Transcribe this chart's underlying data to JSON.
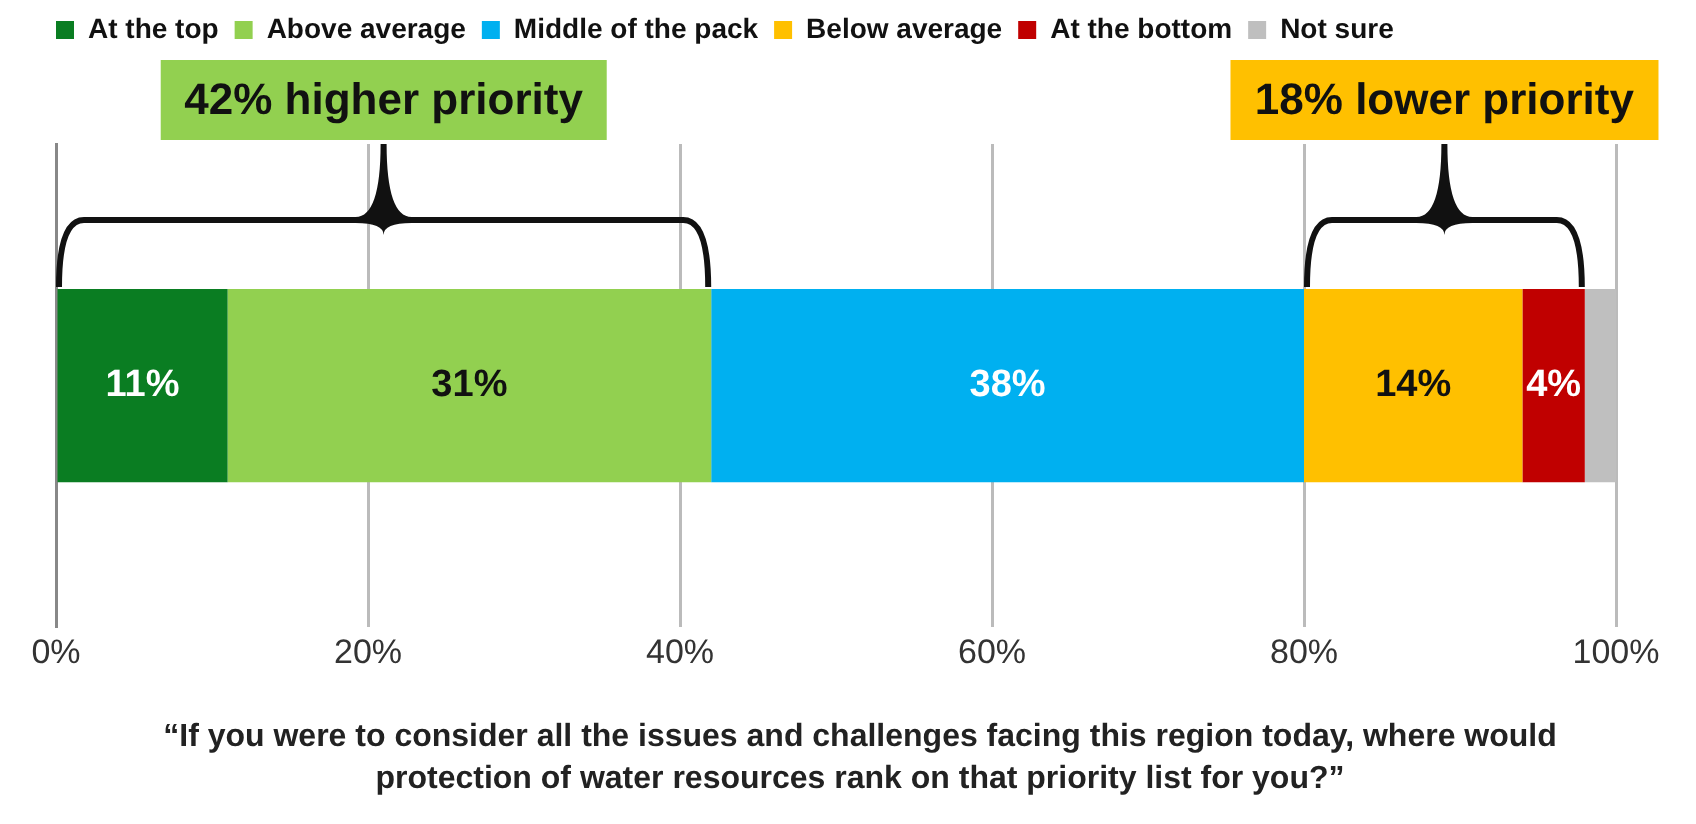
{
  "chart_data": {
    "type": "bar",
    "orientation": "horizontal",
    "stacked": true,
    "categories": [
      null
    ],
    "series": [
      {
        "name": "At the top",
        "color": "#0a7d22",
        "values": [
          11
        ],
        "value_labels": [
          "11%"
        ]
      },
      {
        "name": "Above average",
        "color": "#92d050",
        "values": [
          31
        ],
        "value_labels": [
          "31%"
        ]
      },
      {
        "name": "Middle of the pack",
        "color": "#00b0f0",
        "values": [
          38
        ],
        "value_labels": [
          "38%"
        ]
      },
      {
        "name": "Below average",
        "color": "#ffc000",
        "values": [
          14
        ],
        "value_labels": [
          "14%"
        ]
      },
      {
        "name": "At the bottom",
        "color": "#c00000",
        "values": [
          4
        ],
        "value_labels": [
          "4%"
        ]
      },
      {
        "name": "Not sure",
        "color": "#bfbfbf",
        "values": [
          2
        ],
        "value_labels": [
          null
        ]
      }
    ],
    "xlim": [
      0,
      100
    ],
    "xticks": [
      {
        "value": 0,
        "label": "0%"
      },
      {
        "value": 20,
        "label": "20%"
      },
      {
        "value": 40,
        "label": "40%"
      },
      {
        "value": 60,
        "label": "60%"
      },
      {
        "value": 80,
        "label": "80%"
      },
      {
        "value": 100,
        "label": "100%"
      }
    ],
    "grid": "x",
    "legend": "top left",
    "annotations": [
      "42% higher priority",
      "18% lower priority",
      "“If you were to consider all the issues and challenges facing this region today, where would protection of water resources rank on that priority list for you?”"
    ]
  }
}
